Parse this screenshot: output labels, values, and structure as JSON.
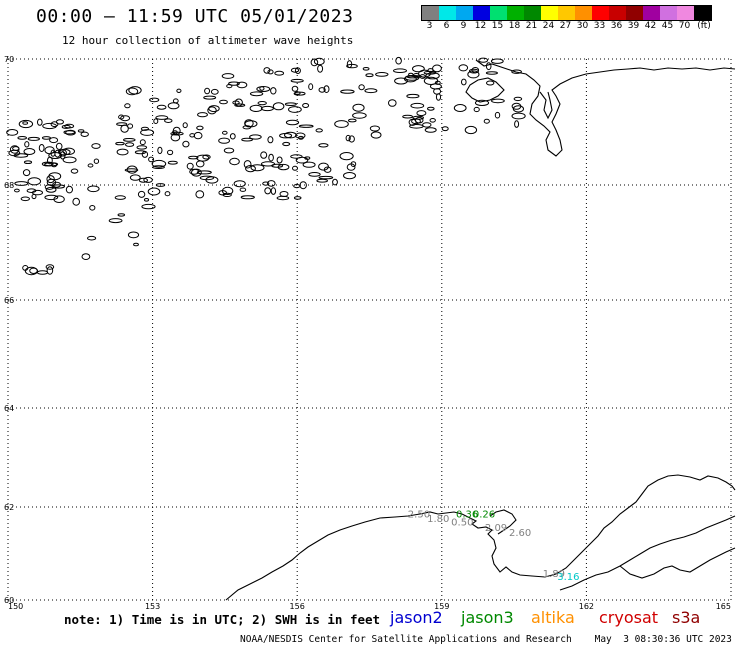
{
  "header": {
    "title": "00:00 – 11:59 UTC 05/01/2023",
    "subtitle": "12 hour collection of altimeter wave heights"
  },
  "legend": {
    "colors": [
      "#808080",
      "#00e8e8",
      "#00a8f0",
      "#0000e0",
      "#00e070",
      "#00b000",
      "#008800",
      "#ffff00",
      "#ffc800",
      "#ff9000",
      "#ff0000",
      "#c80000",
      "#900000",
      "#a000a0",
      "#d070e0",
      "#f088e0",
      "#000000"
    ],
    "labels": [
      "3",
      "6",
      "9",
      "12",
      "15",
      "18",
      "21",
      "24",
      "27",
      "30",
      "33",
      "36",
      "39",
      "42",
      "45",
      "70",
      "(ft)"
    ]
  },
  "map": {
    "lat_labels": [
      "70",
      "68",
      "66",
      "64",
      "62",
      "60"
    ],
    "lon_labels": [
      "150",
      "153",
      "156",
      "159",
      "162",
      "165"
    ],
    "measurements": [
      {
        "text": "2.50",
        "color": "#808080",
        "lon": 159.0,
        "lat": 61.77
      },
      {
        "text": "1.80",
        "color": "#808080",
        "lon": 159.4,
        "lat": 61.68
      },
      {
        "text": "0.36",
        "color": "#008800",
        "lon": 160.0,
        "lat": 61.77
      },
      {
        "text": "0.26",
        "color": "#008800",
        "lon": 160.35,
        "lat": 61.77
      },
      {
        "text": "0.50",
        "color": "#808080",
        "lon": 159.9,
        "lat": 61.6
      },
      {
        "text": "2.09",
        "color": "#808080",
        "lon": 160.6,
        "lat": 61.48
      },
      {
        "text": "2.60",
        "color": "#808080",
        "lon": 161.1,
        "lat": 61.38
      },
      {
        "text": "1.89",
        "color": "#808080",
        "lon": 161.8,
        "lat": 60.5
      },
      {
        "text": "3.16",
        "color": "#00c8c8",
        "lon": 162.1,
        "lat": 60.43
      }
    ]
  },
  "footer": {
    "note": "note: 1) Time is in UTC; 2) SWH is in feet",
    "satellites": [
      {
        "name": "jason2",
        "color": "#0000d0"
      },
      {
        "name": "jason3",
        "color": "#008800"
      },
      {
        "name": "altika",
        "color": "#ff9000"
      },
      {
        "name": "cryosat",
        "color": "#d00000"
      },
      {
        "name": "s3a",
        "color": "#900000"
      }
    ],
    "credit": "NOAA/NESDIS Center for Satellite Applications and Research    May  3 08:30:36 UTC 2023"
  }
}
